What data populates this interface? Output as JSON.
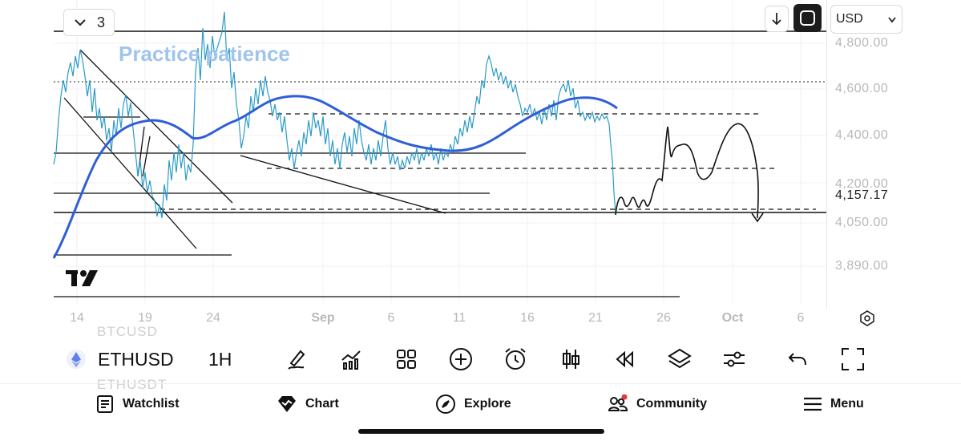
{
  "chart": {
    "layout_count": "3",
    "annotation_text": "Practice patience",
    "currency": "USD",
    "price_ticks": [
      "4,800.00",
      "4,600.00",
      "4,400.00",
      "4,200.00",
      "4,050.00",
      "3,890.00"
    ],
    "current_price": "4,157.17",
    "date_ticks": [
      "14",
      "19",
      "24",
      "Sep",
      "6",
      "11",
      "16",
      "21",
      "26",
      "Oct",
      "6"
    ]
  },
  "symbol": {
    "ticker": "ETHUSD",
    "interval": "1H",
    "ghost_above": "BTCUSD",
    "ghost_below": "ETHUSDT"
  },
  "toolbar_icons": [
    "brush-icon",
    "indicators-icon",
    "grid-icon",
    "add-icon",
    "alert-icon",
    "candles-icon",
    "replay-icon",
    "layers-icon",
    "settings-icon",
    "undo-icon",
    "fullscreen-icon"
  ],
  "nav": {
    "watchlist": "Watchlist",
    "chart": "Chart",
    "explore": "Explore",
    "community": "Community",
    "menu": "Menu"
  },
  "colors": {
    "price_line": "#2b9ac8",
    "moving_average": "#2f5fd6",
    "annotation": "#9fc4ee",
    "notification_dot": "#e53935"
  }
}
